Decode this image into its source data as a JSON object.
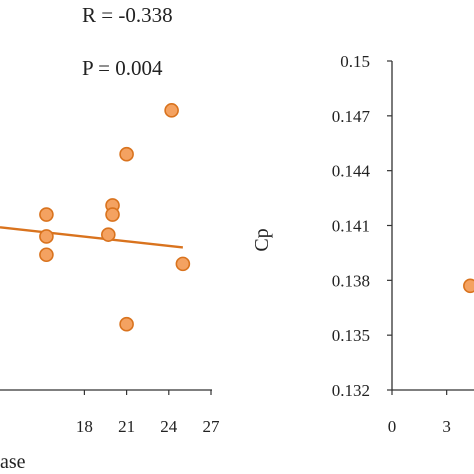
{
  "colors": {
    "marker_fill": "#F4A261",
    "marker_stroke": "#D9731E",
    "trend_line": "#D9731E",
    "axis": "#333333"
  },
  "chart_data": [
    {
      "type": "scatter",
      "annotations": {
        "r": "R = -0.338",
        "p": "P = 0.004"
      },
      "xlabel_fragment": "ase",
      "xlim": [
        12,
        27
      ],
      "x_ticks": [
        "18",
        "21",
        "24",
        "27"
      ],
      "x_tick_values": [
        18,
        21,
        24,
        27
      ],
      "ylim": [
        0.132,
        0.15
      ],
      "points": [
        {
          "x": 15.3,
          "y": 0.1416
        },
        {
          "x": 15.3,
          "y": 0.1404
        },
        {
          "x": 15.3,
          "y": 0.1394
        },
        {
          "x": 19.7,
          "y": 0.1405
        },
        {
          "x": 20.0,
          "y": 0.1421
        },
        {
          "x": 20.0,
          "y": 0.1416
        },
        {
          "x": 21.0,
          "y": 0.1449
        },
        {
          "x": 21.0,
          "y": 0.1356
        },
        {
          "x": 24.2,
          "y": 0.1473
        },
        {
          "x": 25.0,
          "y": 0.1389
        }
      ],
      "trendline": {
        "x": [
          12,
          25
        ],
        "y": [
          0.1409,
          0.1398
        ]
      },
      "grid": false
    },
    {
      "type": "scatter",
      "ylabel": "Cp",
      "ylim": [
        0.132,
        0.15
      ],
      "y_ticks": [
        "0.15",
        "0.147",
        "0.144",
        "0.141",
        "0.138",
        "0.135",
        "0.132"
      ],
      "y_tick_values": [
        0.15,
        0.147,
        0.144,
        0.141,
        0.138,
        0.135,
        0.132
      ],
      "xlim": [
        0,
        4.5
      ],
      "x_ticks": [
        "0",
        "3"
      ],
      "x_tick_values": [
        0,
        3
      ],
      "points": [
        {
          "x": 4.3,
          "y": 0.1377
        }
      ],
      "grid": false
    }
  ]
}
